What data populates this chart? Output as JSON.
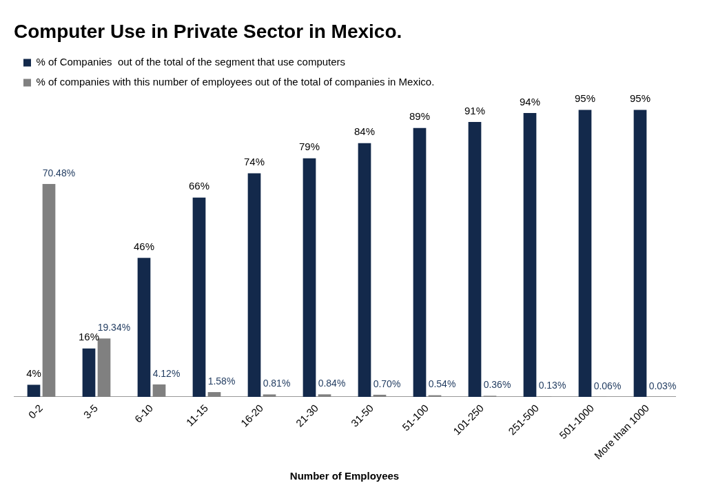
{
  "chart_data": {
    "type": "bar",
    "title": "Computer Use in Private Sector in Mexico.",
    "xlabel": "Number of Employees",
    "categories": [
      "0-2",
      "3-5",
      "6-10",
      "11-15",
      "16-20",
      "21-30",
      "31-50",
      "51-100",
      "101-250",
      "251-500",
      "501-1000",
      "More than 1000"
    ],
    "series": [
      {
        "name": "% of Companies  out of the total of the segment that use computers",
        "color": "#13294b",
        "values": [
          4,
          16,
          46,
          66,
          74,
          79,
          84,
          89,
          91,
          94,
          95,
          95
        ],
        "value_labels": [
          "4%",
          "16%",
          "46%",
          "66%",
          "74%",
          "79%",
          "84%",
          "89%",
          "91%",
          "94%",
          "95%",
          "95%"
        ]
      },
      {
        "name": "% of companies with this number of employees out of the total of companies in Mexico.",
        "color": "#808080",
        "values": [
          70.48,
          19.34,
          4.12,
          1.58,
          0.81,
          0.84,
          0.7,
          0.54,
          0.36,
          0.13,
          0.06,
          0.03
        ],
        "value_labels": [
          "70.48%",
          "19.34%",
          "4.12%",
          "1.58%",
          "0.81%",
          "0.84%",
          "0.70%",
          "0.54%",
          "0.36%",
          "0.13%",
          "0.06%",
          "0.03%"
        ]
      }
    ],
    "grid": false,
    "legend": "top left"
  }
}
